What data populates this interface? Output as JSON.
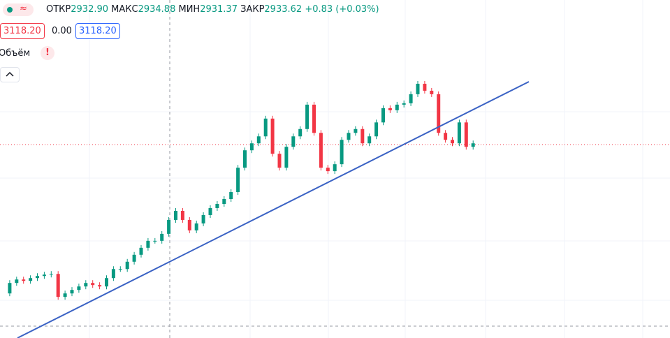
{
  "header": {
    "open_label": "ОТКР",
    "open": "2932.90",
    "high_label": "МАКС",
    "high": "2934.88",
    "low_label": "МИН",
    "low": "2931.37",
    "close_label": "ЗАКР",
    "close": "2933.62",
    "change": "+0.83 (+0.03%)"
  },
  "indicator": {
    "left": "3118.20",
    "middle": "0.00",
    "right": "3118.20"
  },
  "volume": {
    "label": "Объём",
    "warning": "!"
  },
  "chart_data": {
    "type": "candle-close",
    "ylim": [
      2380,
      3150
    ],
    "up_color": "#089981",
    "down_color": "#f23645",
    "values": [
      2508,
      2538,
      2548,
      2544,
      2552,
      2558,
      2562,
      2564,
      2498,
      2508,
      2518,
      2528,
      2538,
      2532,
      2528,
      2552,
      2578,
      2578,
      2599,
      2619,
      2639,
      2659,
      2659,
      2679,
      2719,
      2745,
      2719,
      2689,
      2709,
      2733,
      2753,
      2765,
      2779,
      2799,
      2869,
      2919,
      2939,
      2959,
      3010,
      2909,
      2869,
      2929,
      2959,
      2980,
      3050,
      2969,
      2869,
      2859,
      2879,
      2949,
      2969,
      2980,
      2939,
      2959,
      2999,
      3040,
      3034,
      3050,
      3054,
      3080,
      3110,
      3090,
      3080,
      2969,
      2949,
      2939,
      2999,
      2929,
      2939
    ]
  }
}
